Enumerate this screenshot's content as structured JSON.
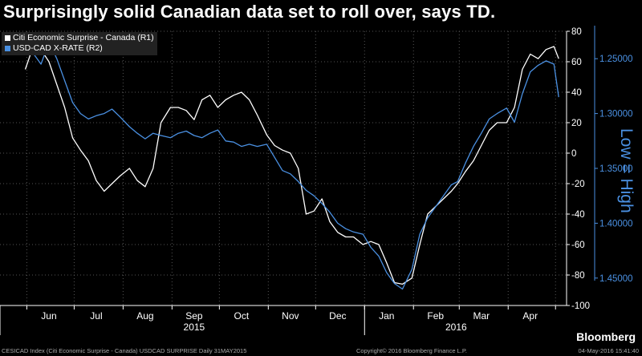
{
  "title": "Surprisingly solid Canadian data set to roll over, says TD.",
  "brand": "Bloomberg",
  "footer": {
    "left": "CESICAD Index (Citi Economic Surprise - Canada) USDCAD SURPRISE  Daily 31MAY2015",
    "middle": "Copyright© 2016 Bloomberg Finance L.P.",
    "right": "04-May-2016 15:41:40"
  },
  "chart_data": {
    "type": "line",
    "title": "Surprisingly solid Canadian data set to roll over, says TD.",
    "legend_placement": "top-left",
    "grid": true,
    "x_tick_labels": [
      "Jun",
      "Jul",
      "Aug",
      "Sep",
      "Oct",
      "Nov",
      "Dec",
      "Jan",
      "Feb",
      "Mar",
      "Apr"
    ],
    "x_year_labels": [
      "2015",
      "2016"
    ],
    "left_axis": {
      "range": [
        -100,
        80
      ],
      "ticks": [
        "80",
        "60",
        "40",
        "20",
        "0",
        "-20",
        "-40",
        "-60",
        "-80",
        "-100"
      ]
    },
    "right_axis": {
      "label": "Low = High",
      "inverted": true,
      "range": [
        1.475,
        1.225
      ],
      "ticks": [
        "1.25000",
        "1.30000",
        "1.35000",
        "1.40000",
        "1.45000"
      ]
    },
    "series": [
      {
        "name": "Citi Economic Surprise - Canada  (R1)",
        "axis": "left",
        "color": "#ffffff",
        "x": [
          "2015-05-31",
          "2015-06-05",
          "2015-06-10",
          "2015-06-15",
          "2015-06-20",
          "2015-06-25",
          "2015-06-30",
          "2015-07-05",
          "2015-07-10",
          "2015-07-15",
          "2015-07-20",
          "2015-07-25",
          "2015-07-30",
          "2015-08-05",
          "2015-08-10",
          "2015-08-15",
          "2015-08-20",
          "2015-08-25",
          "2015-08-31",
          "2015-09-05",
          "2015-09-10",
          "2015-09-15",
          "2015-09-20",
          "2015-09-25",
          "2015-09-30",
          "2015-10-05",
          "2015-10-10",
          "2015-10-15",
          "2015-10-20",
          "2015-10-25",
          "2015-10-31",
          "2015-11-05",
          "2015-11-10",
          "2015-11-15",
          "2015-11-20",
          "2015-11-25",
          "2015-11-30",
          "2015-12-05",
          "2015-12-10",
          "2015-12-15",
          "2015-12-20",
          "2015-12-25",
          "2015-12-31",
          "2016-01-05",
          "2016-01-10",
          "2016-01-15",
          "2016-01-20",
          "2016-01-25",
          "2016-01-31",
          "2016-02-05",
          "2016-02-10",
          "2016-02-15",
          "2016-02-20",
          "2016-02-25",
          "2016-02-29",
          "2016-03-05",
          "2016-03-10",
          "2016-03-15",
          "2016-03-20",
          "2016-03-25",
          "2016-03-31",
          "2016-04-05",
          "2016-04-10",
          "2016-04-15",
          "2016-04-20",
          "2016-04-25",
          "2016-04-30",
          "2016-05-03"
        ],
        "values": [
          55,
          70,
          68,
          60,
          45,
          30,
          10,
          2,
          -5,
          -18,
          -25,
          -20,
          -15,
          -10,
          -18,
          -22,
          -10,
          20,
          30,
          30,
          28,
          22,
          35,
          38,
          30,
          35,
          38,
          40,
          35,
          25,
          12,
          5,
          2,
          0,
          -10,
          -40,
          -38,
          -30,
          -45,
          -52,
          -55,
          -55,
          -60,
          -58,
          -60,
          -72,
          -85,
          -86,
          -82,
          -60,
          -40,
          -35,
          -30,
          -25,
          -20,
          -12,
          -5,
          5,
          15,
          20,
          20,
          30,
          55,
          65,
          62,
          68,
          70,
          62
        ]
      },
      {
        "name": "USD-CAD X-RATE  (R2)",
        "axis": "right",
        "color": "#4a90e2",
        "x": [
          "2015-05-31",
          "2015-06-05",
          "2015-06-10",
          "2015-06-15",
          "2015-06-20",
          "2015-06-25",
          "2015-06-30",
          "2015-07-05",
          "2015-07-10",
          "2015-07-15",
          "2015-07-20",
          "2015-07-25",
          "2015-07-30",
          "2015-08-05",
          "2015-08-10",
          "2015-08-15",
          "2015-08-20",
          "2015-08-25",
          "2015-08-31",
          "2015-09-05",
          "2015-09-10",
          "2015-09-15",
          "2015-09-20",
          "2015-09-25",
          "2015-09-30",
          "2015-10-05",
          "2015-10-10",
          "2015-10-15",
          "2015-10-20",
          "2015-10-25",
          "2015-10-31",
          "2015-11-05",
          "2015-11-10",
          "2015-11-15",
          "2015-11-20",
          "2015-11-25",
          "2015-11-30",
          "2015-12-05",
          "2015-12-10",
          "2015-12-15",
          "2015-12-20",
          "2015-12-25",
          "2015-12-31",
          "2016-01-05",
          "2016-01-10",
          "2016-01-15",
          "2016-01-20",
          "2016-01-25",
          "2016-01-31",
          "2016-02-05",
          "2016-02-10",
          "2016-02-15",
          "2016-02-20",
          "2016-02-25",
          "2016-02-29",
          "2016-03-05",
          "2016-03-10",
          "2016-03-15",
          "2016-03-20",
          "2016-03-25",
          "2016-03-31",
          "2016-04-05",
          "2016-04-10",
          "2016-04-15",
          "2016-04-20",
          "2016-04-25",
          "2016-04-30",
          "2016-05-03"
        ],
        "values": [
          1.24,
          1.245,
          1.255,
          1.235,
          1.25,
          1.27,
          1.29,
          1.3,
          1.305,
          1.302,
          1.3,
          1.296,
          1.303,
          1.312,
          1.318,
          1.323,
          1.318,
          1.32,
          1.322,
          1.318,
          1.316,
          1.32,
          1.322,
          1.318,
          1.315,
          1.325,
          1.326,
          1.33,
          1.328,
          1.33,
          1.328,
          1.34,
          1.352,
          1.355,
          1.362,
          1.37,
          1.375,
          1.382,
          1.39,
          1.4,
          1.405,
          1.408,
          1.41,
          1.422,
          1.43,
          1.445,
          1.455,
          1.46,
          1.442,
          1.41,
          1.395,
          1.385,
          1.375,
          1.365,
          1.362,
          1.345,
          1.33,
          1.318,
          1.305,
          1.3,
          1.295,
          1.308,
          1.282,
          1.262,
          1.256,
          1.252,
          1.255,
          1.285
        ]
      }
    ]
  }
}
